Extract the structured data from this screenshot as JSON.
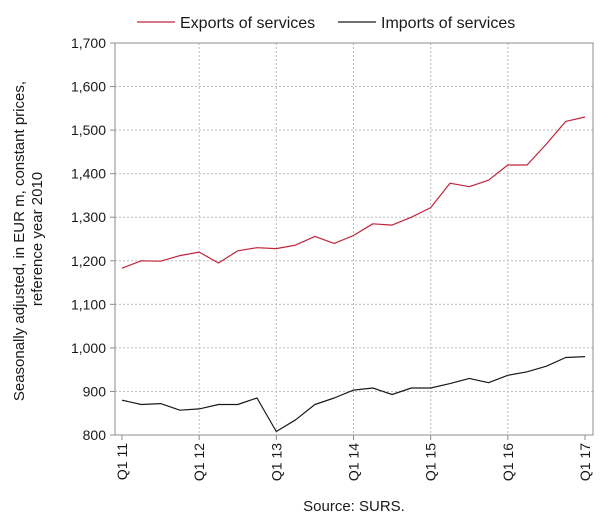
{
  "chart_data": {
    "type": "line",
    "title": "",
    "ylabel_lines": [
      "Seasonally adjusted, in EUR m, constant prices,",
      "reference year 2010"
    ],
    "xlabel": "",
    "ylim": [
      800,
      1700
    ],
    "yticks": [
      800,
      900,
      1000,
      1100,
      1200,
      1300,
      1400,
      1500,
      1600,
      1700
    ],
    "ytick_labels": [
      "800",
      "900",
      "1,000",
      "1,100",
      "1,200",
      "1,300",
      "1,400",
      "1,500",
      "1,600",
      "1,700"
    ],
    "x": [
      "Q1 11",
      "Q2 11",
      "Q3 11",
      "Q4 11",
      "Q1 12",
      "Q2 12",
      "Q3 12",
      "Q4 12",
      "Q1 13",
      "Q2 13",
      "Q3 13",
      "Q4 13",
      "Q1 14",
      "Q2 14",
      "Q3 14",
      "Q4 14",
      "Q1 15",
      "Q2 15",
      "Q3 15",
      "Q4 15",
      "Q1 16",
      "Q2 16",
      "Q3 16",
      "Q4 16",
      "Q1 17"
    ],
    "xtick_labels": [
      "Q1 11",
      "Q1 12",
      "Q1 13",
      "Q1 14",
      "Q1 15",
      "Q1 16",
      "Q1 17"
    ],
    "grid": true,
    "legend_position": "top",
    "series": [
      {
        "name": "Exports of services",
        "color": "#c0243c",
        "values": [
          1183,
          1200,
          1199,
          1212,
          1220,
          1195,
          1223,
          1230,
          1228,
          1236,
          1256,
          1240,
          1258,
          1285,
          1282,
          1300,
          1322,
          1378,
          1370,
          1385,
          1420,
          1420,
          1468,
          1520,
          1530
        ]
      },
      {
        "name": "Imports of services",
        "color": "#1a1a1a",
        "values": [
          880,
          870,
          872,
          857,
          860,
          870,
          870,
          885,
          808,
          835,
          870,
          885,
          903,
          908,
          893,
          908,
          908,
          918,
          930,
          920,
          937,
          945,
          958,
          978,
          980
        ]
      }
    ],
    "source": "Source: SURS."
  }
}
